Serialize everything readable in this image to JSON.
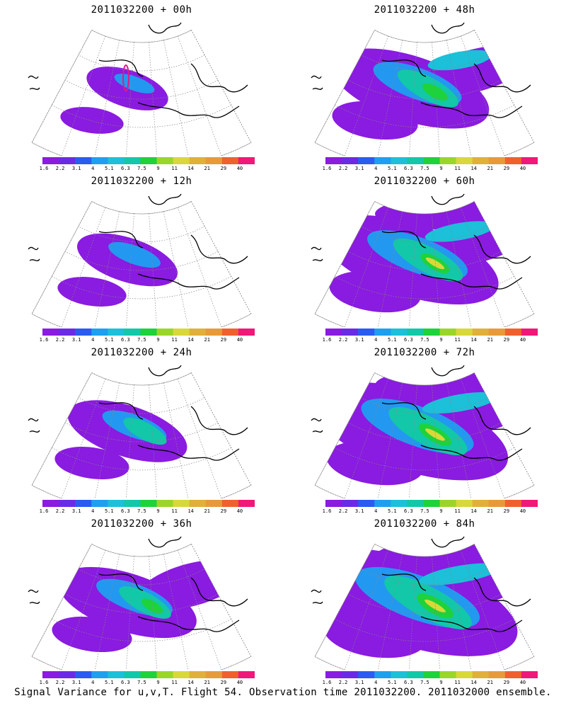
{
  "panels": [
    {
      "title": "2011032200 + 00h",
      "level": 0
    },
    {
      "title": "2011032200 + 48h",
      "level": 4
    },
    {
      "title": "2011032200 + 12h",
      "level": 1
    },
    {
      "title": "2011032200 + 60h",
      "level": 5
    },
    {
      "title": "2011032200 + 24h",
      "level": 2
    },
    {
      "title": "2011032200 + 72h",
      "level": 6
    },
    {
      "title": "2011032200 + 36h",
      "level": 3
    },
    {
      "title": "2011032200 + 84h",
      "level": 7
    }
  ],
  "colorbar": {
    "labels": [
      "1.6",
      "2.2",
      "3.1",
      "4",
      "5.1",
      "6.3",
      "7.5",
      "9",
      "11",
      "14",
      "21",
      "29",
      "40"
    ],
    "colors": [
      "#8a1be0",
      "#6a2be6",
      "#2a5cf2",
      "#1e9ff0",
      "#1cc0d8",
      "#12c8a8",
      "#1ed23a",
      "#9ad62a",
      "#d8d83a",
      "#e0b03a",
      "#e89a3a",
      "#f0602c",
      "#f01878"
    ]
  },
  "footer": "Signal Variance for u,v,T. Flight 54. Observation time 2011032200. 2011032000 ensemble."
}
